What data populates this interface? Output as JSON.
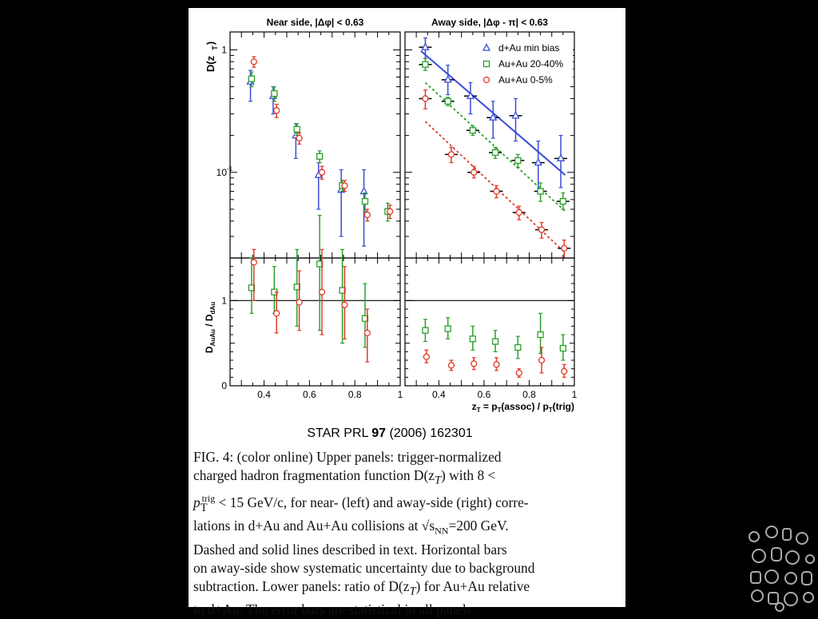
{
  "citation": {
    "prefix": "STAR PRL ",
    "volume": "97",
    "suffix": " (2006) 162301"
  },
  "caption": {
    "l1": "FIG. 4:  (color online) Upper panels:  trigger-normalized",
    "l2": "charged hadron fragmentation function D(z",
    "l2b": "T",
    "l2c": ") with 8  <",
    "l3a": "p",
    "l3sub": "T",
    "l3sup": "trig",
    "l3b": " < 15 GeV/c, for near- (left) and away-side (right) corre-",
    "l4": "lations in d+Au and Au+Au collisions at √s",
    "l4sub": "NN",
    "l4b": "=200 GeV.",
    "l5": "Dashed and solid lines described in text.  Horizontal bars",
    "l6": "on away-side show systematic uncertainty due to background",
    "l7": "subtraction. Lower panels: ratio of D(z",
    "l7b": "T",
    "l7c": ") for Au+Au relative",
    "l8": "to d+Au.  The error bars are statistical in all panels."
  },
  "chart_data": [
    {
      "type": "scatter",
      "panel": "upper-left",
      "title": "Near side, |Δφ| < 0.63",
      "ylabel": "D(z_T)",
      "yscale": "log",
      "ylim": [
        0.02,
        1.4
      ],
      "xlim": [
        0.25,
        1.0
      ],
      "y_ticks": [
        "1",
        "10^-1"
      ],
      "series": [
        {
          "name": "d+Au min bias",
          "color": "#3a4bd8",
          "marker": "triangle",
          "x": [
            0.34,
            0.44,
            0.54,
            0.64,
            0.74,
            0.84
          ],
          "y": [
            0.55,
            0.42,
            0.2,
            0.095,
            0.072,
            0.07
          ],
          "err_lo": [
            0.38,
            0.3,
            0.13,
            0.05,
            0.03,
            0.025
          ],
          "err_hi": [
            0.68,
            0.5,
            0.25,
            0.12,
            0.105,
            0.105
          ]
        },
        {
          "name": "Au+Au 20-40%",
          "color": "#2aa02a",
          "marker": "square",
          "x": [
            0.345,
            0.445,
            0.545,
            0.645,
            0.745,
            0.845,
            0.945
          ],
          "y": [
            0.58,
            0.44,
            0.225,
            0.135,
            0.078,
            0.058,
            0.048
          ],
          "err_lo": [
            0.5,
            0.38,
            0.2,
            0.12,
            0.07,
            0.048,
            0.04
          ],
          "err_hi": [
            0.66,
            0.5,
            0.25,
            0.15,
            0.086,
            0.068,
            0.056
          ]
        },
        {
          "name": "Au+Au 0-5%",
          "color": "#e03a2a",
          "marker": "circle",
          "x": [
            0.355,
            0.455,
            0.555,
            0.655,
            0.755,
            0.855,
            0.955
          ],
          "y": [
            0.8,
            0.32,
            0.19,
            0.1,
            0.078,
            0.045,
            0.048
          ],
          "err_lo": [
            0.72,
            0.28,
            0.17,
            0.088,
            0.07,
            0.04,
            0.042
          ],
          "err_hi": [
            0.88,
            0.36,
            0.21,
            0.112,
            0.086,
            0.05,
            0.054
          ]
        }
      ]
    },
    {
      "type": "scatter",
      "panel": "upper-right",
      "title": "Away side, |Δφ - π| < 0.63",
      "yscale": "log",
      "ylim": [
        0.02,
        1.4
      ],
      "xlim": [
        0.25,
        1.0
      ],
      "legend": "top-right",
      "series": [
        {
          "name": "d+Au min bias",
          "color": "#3a4bd8",
          "marker": "triangle",
          "x": [
            0.34,
            0.44,
            0.54,
            0.64,
            0.74,
            0.84,
            0.94
          ],
          "y": [
            1.05,
            0.57,
            0.42,
            0.28,
            0.29,
            0.12,
            0.13
          ],
          "err_lo": [
            0.85,
            0.43,
            0.3,
            0.19,
            0.18,
            0.07,
            0.075
          ],
          "err_hi": [
            1.25,
            0.75,
            0.54,
            0.38,
            0.4,
            0.18,
            0.2
          ],
          "fit": {
            "style": "solid",
            "x": [
              0.32,
              0.96
            ],
            "y": [
              0.98,
              0.095
            ]
          }
        },
        {
          "name": "Au+Au 20-40%",
          "color": "#2aa02a",
          "marker": "square",
          "x": [
            0.34,
            0.44,
            0.55,
            0.65,
            0.75,
            0.85,
            0.95
          ],
          "y": [
            0.76,
            0.38,
            0.22,
            0.145,
            0.125,
            0.07,
            0.058
          ],
          "err_lo": [
            0.68,
            0.35,
            0.2,
            0.13,
            0.11,
            0.058,
            0.05
          ],
          "err_hi": [
            0.85,
            0.41,
            0.24,
            0.16,
            0.14,
            0.082,
            0.068
          ],
          "fit": {
            "style": "dashed",
            "x": [
              0.34,
              0.96
            ],
            "y": [
              0.54,
              0.048
            ]
          }
        },
        {
          "name": "Au+Au 0-5%",
          "color": "#e03a2a",
          "marker": "circle",
          "x": [
            0.34,
            0.455,
            0.555,
            0.655,
            0.755,
            0.855,
            0.955
          ],
          "y": [
            0.4,
            0.14,
            0.1,
            0.07,
            0.047,
            0.034,
            0.024
          ],
          "err_lo": [
            0.33,
            0.12,
            0.09,
            0.062,
            0.041,
            0.029,
            0.02
          ],
          "err_hi": [
            0.47,
            0.16,
            0.112,
            0.078,
            0.053,
            0.039,
            0.028
          ],
          "fit": {
            "style": "dashed",
            "x": [
              0.34,
              0.96
            ],
            "y": [
              0.26,
              0.022
            ]
          }
        }
      ]
    },
    {
      "type": "scatter",
      "panel": "lower-left",
      "ylabel": "D_AuAu / D_dAu",
      "xlabel": "",
      "ylim": [
        0,
        1.5
      ],
      "xlim": [
        0.25,
        1.0
      ],
      "x_ticks": [
        "0.4",
        "0.6",
        "0.8",
        "1"
      ],
      "y_ticks": [
        "0",
        "1"
      ],
      "reference_line": 1,
      "series": [
        {
          "name": "Au+Au 20-40%",
          "color": "#2aa02a",
          "marker": "square",
          "x": [
            0.345,
            0.445,
            0.545,
            0.645,
            0.745,
            0.845
          ],
          "y": [
            1.15,
            1.1,
            1.16,
            1.43,
            1.12,
            0.79
          ],
          "err_lo": [
            0.85,
            0.85,
            0.7,
            0.65,
            0.5,
            0.45
          ],
          "err_hi": [
            1.5,
            1.4,
            1.6,
            2.0,
            1.6,
            1.2
          ]
        },
        {
          "name": "Au+Au 0-5%",
          "color": "#e03a2a",
          "marker": "circle",
          "x": [
            0.355,
            0.455,
            0.555,
            0.655,
            0.755,
            0.855
          ],
          "y": [
            1.45,
            0.85,
            0.98,
            1.1,
            0.95,
            0.62
          ],
          "err_lo": [
            1.0,
            0.62,
            0.65,
            0.6,
            0.55,
            0.28
          ],
          "err_hi": [
            1.6,
            1.1,
            1.35,
            1.6,
            1.4,
            0.9
          ]
        }
      ]
    },
    {
      "type": "scatter",
      "panel": "lower-right",
      "xlabel": "z_T = p_T(assoc) / p_T(trig)",
      "ylim": [
        0,
        1.5
      ],
      "xlim": [
        0.25,
        1.0
      ],
      "x_ticks": [
        "0.4",
        "0.6",
        "0.8",
        "1"
      ],
      "reference_line": 1,
      "series": [
        {
          "name": "Au+Au 20-40%",
          "color": "#2aa02a",
          "marker": "square",
          "x": [
            0.34,
            0.44,
            0.55,
            0.65,
            0.75,
            0.85,
            0.95
          ],
          "y": [
            0.65,
            0.67,
            0.55,
            0.52,
            0.45,
            0.6,
            0.44
          ],
          "err_lo": [
            0.52,
            0.55,
            0.42,
            0.4,
            0.32,
            0.38,
            0.3
          ],
          "err_hi": [
            0.78,
            0.8,
            0.7,
            0.65,
            0.58,
            0.85,
            0.6
          ]
        },
        {
          "name": "Au+Au 0-5%",
          "color": "#e03a2a",
          "marker": "circle",
          "x": [
            0.345,
            0.455,
            0.555,
            0.655,
            0.755,
            0.855,
            0.955
          ],
          "y": [
            0.34,
            0.24,
            0.26,
            0.25,
            0.15,
            0.3,
            0.17
          ],
          "err_lo": [
            0.27,
            0.18,
            0.19,
            0.18,
            0.1,
            0.15,
            0.1
          ],
          "err_hi": [
            0.42,
            0.3,
            0.33,
            0.33,
            0.2,
            0.45,
            0.25
          ]
        }
      ]
    }
  ]
}
